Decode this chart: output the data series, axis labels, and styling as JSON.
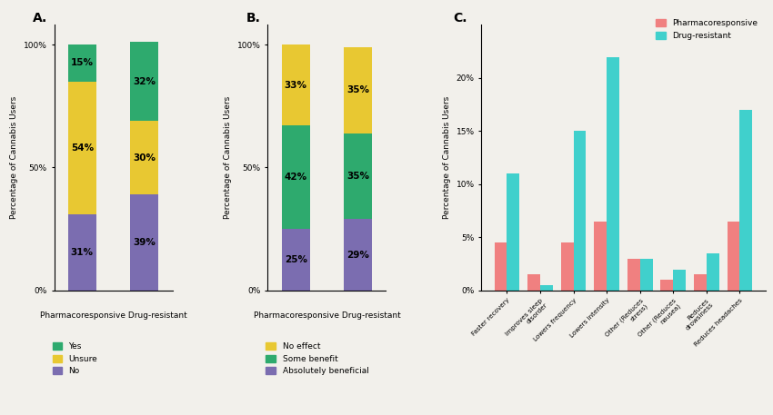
{
  "panel_A": {
    "no": [
      31,
      39
    ],
    "unsure": [
      54,
      30
    ],
    "yes": [
      15,
      32
    ],
    "colors": {
      "yes": "#2eaa6e",
      "unsure": "#e8c832",
      "no": "#7b6db0"
    },
    "ylabel": "Percentage of Cannabis Users"
  },
  "panel_B": {
    "absolutely_beneficial": [
      25,
      29
    ],
    "some_benefit": [
      42,
      35
    ],
    "no_effect": [
      33,
      35
    ],
    "colors": {
      "no_effect": "#e8c832",
      "some_benefit": "#2eaa6e",
      "absolutely_beneficial": "#7b6db0"
    },
    "ylabel": "Percentage of Cannabis Users"
  },
  "panel_C": {
    "categories": [
      "Faster recovery",
      "Improves sleep\ndisorder",
      "Lowers frequency",
      "Lowers intensity",
      "Other (Reduces\nstress)",
      "Other (Reduces\nnausea)",
      "Reduces\ndrowsiness",
      "Reduces headaches"
    ],
    "pharmacoresponsive": [
      4.5,
      1.5,
      4.5,
      6.5,
      3.0,
      1.0,
      1.5,
      6.5
    ],
    "drug_resistant": [
      11.0,
      0.5,
      15.0,
      22.0,
      3.0,
      2.0,
      3.5,
      17.0
    ],
    "colors": {
      "pharmacoresponsive": "#f08080",
      "drug_resistant": "#40d0cc"
    },
    "ylabel": "Percentage of Cannabis Users"
  },
  "background_color": "#f2f0eb",
  "title_fontsize": 10,
  "label_fontsize": 6.5,
  "tick_fontsize": 6.5,
  "bar_label_fontsize": 7.5
}
